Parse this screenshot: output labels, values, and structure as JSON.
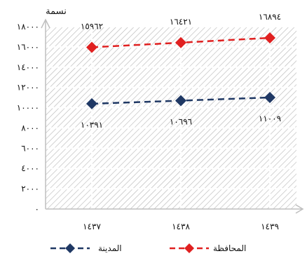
{
  "chart_data": {
    "type": "line",
    "ylabel": "نسمة",
    "categories": [
      "١٤٣٧",
      "١٤٣٨",
      "١٤٣٩"
    ],
    "ylim": [
      0,
      18000
    ],
    "yticks": [
      0,
      2000,
      4000,
      6000,
      8000,
      10000,
      12000,
      14000,
      16000,
      18000
    ],
    "ytick_labels": [
      "٠",
      "٢٠٠٠",
      "٤٠٠٠",
      "٦٠٠٠",
      "٨٠٠٠",
      "١٠٠٠٠",
      "١٢٠٠٠",
      "١٤٠٠٠",
      "١٦٠٠٠",
      "١٨٠٠٠"
    ],
    "grid": true,
    "background_pattern": "diagonal-hatch",
    "legend_position": "bottom",
    "series": [
      {
        "name": "المحافظة",
        "values": [
          15962,
          16421,
          16894
        ],
        "labels": [
          "١٥٩٦٢",
          "١٦٤٢١",
          "١٦٨٩٤"
        ],
        "color": "#e02020",
        "marker": "diamond",
        "line_style": "dashed",
        "label_position": "above"
      },
      {
        "name": "المدينة",
        "values": [
          10391,
          10696,
          11009
        ],
        "labels": [
          "١٠٣٩١",
          "١٠٦٩٦",
          "١١٠٠٩"
        ],
        "color": "#1f3864",
        "marker": "diamond",
        "line_style": "dashed",
        "label_position": "below"
      }
    ]
  }
}
